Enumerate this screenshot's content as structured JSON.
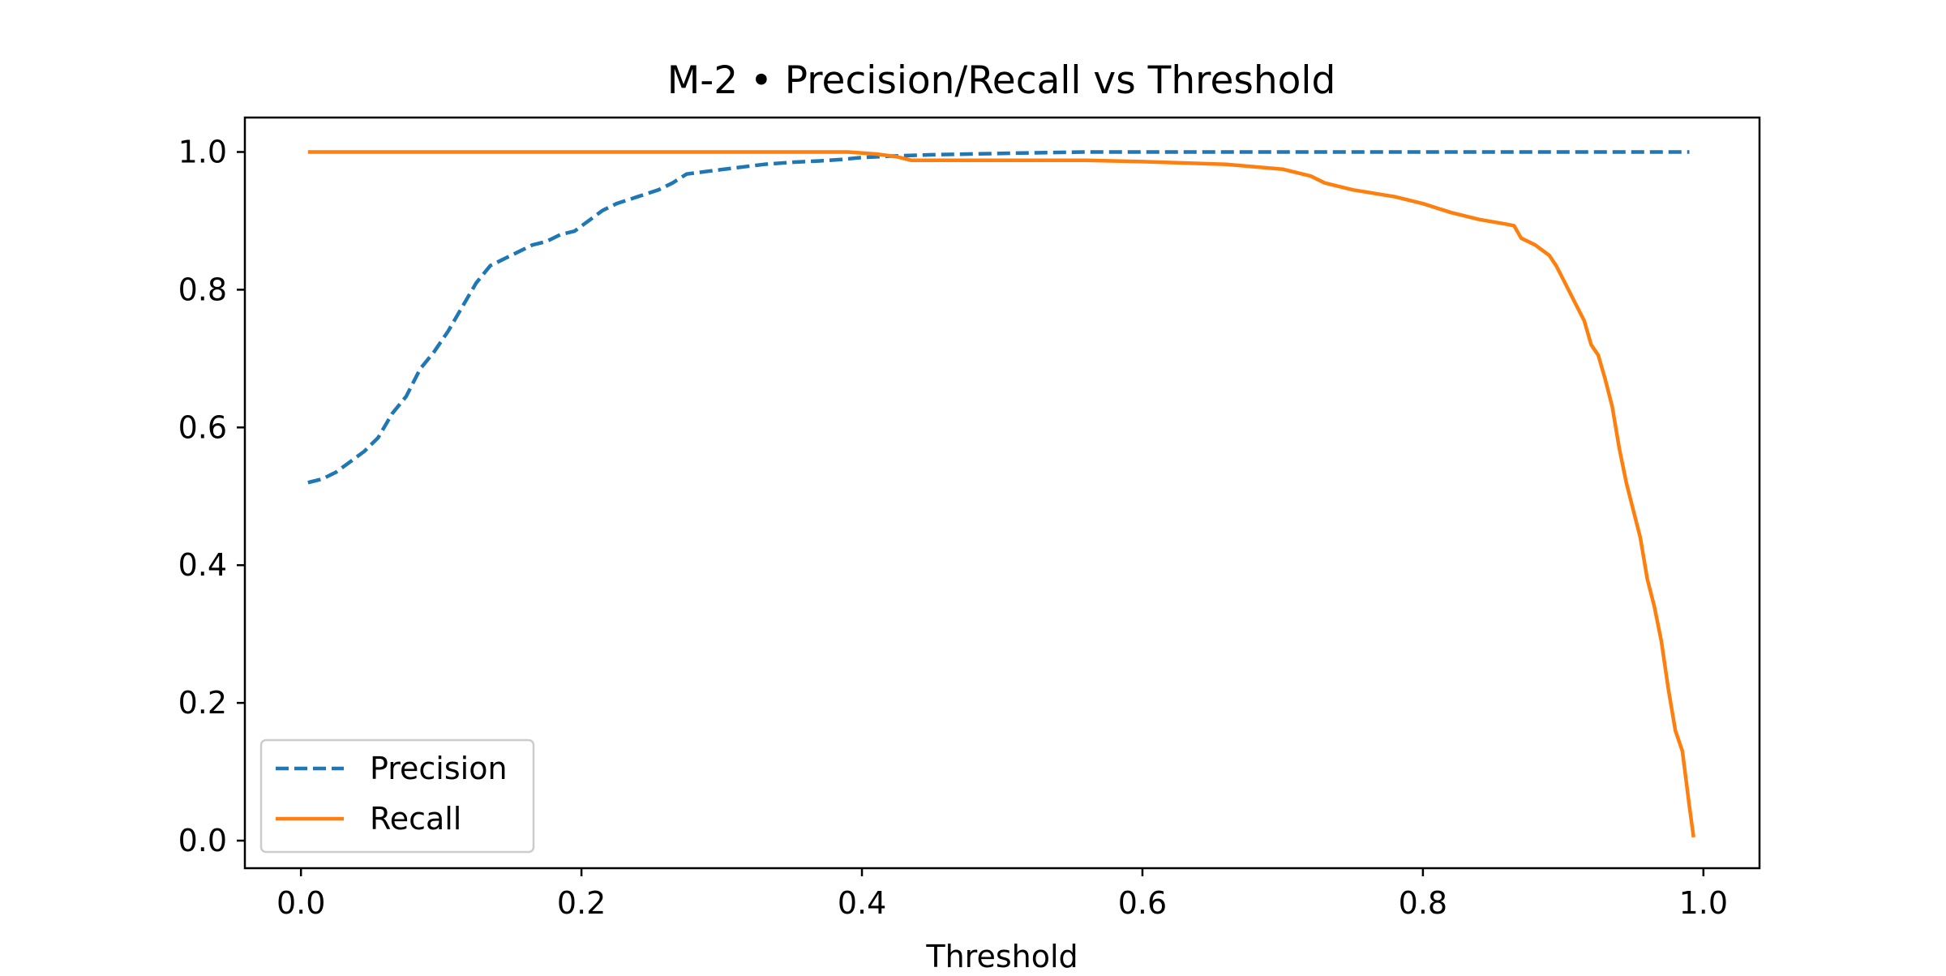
{
  "chart_data": {
    "type": "line",
    "title": "M-2 • Precision/Recall vs Threshold",
    "xlabel": "Threshold",
    "ylabel": "",
    "xlim": [
      -0.04,
      1.04
    ],
    "ylim": [
      -0.04,
      1.05
    ],
    "xticks": [
      0.0,
      0.2,
      0.4,
      0.6,
      0.8,
      1.0
    ],
    "xtick_labels": [
      "0.0",
      "0.2",
      "0.4",
      "0.6",
      "0.8",
      "1.0"
    ],
    "yticks": [
      0.0,
      0.2,
      0.4,
      0.6,
      0.8,
      1.0
    ],
    "ytick_labels": [
      "0.0",
      "0.2",
      "0.4",
      "0.6",
      "0.8",
      "1.0"
    ],
    "grid": false,
    "legend_position": "lower-left",
    "series": [
      {
        "name": "Precision",
        "color": "#1f77b4",
        "style": "dashed",
        "x": [
          0.005,
          0.015,
          0.025,
          0.035,
          0.045,
          0.055,
          0.065,
          0.075,
          0.085,
          0.095,
          0.105,
          0.115,
          0.125,
          0.135,
          0.145,
          0.155,
          0.165,
          0.175,
          0.185,
          0.195,
          0.205,
          0.215,
          0.225,
          0.24,
          0.255,
          0.265,
          0.275,
          0.29,
          0.31,
          0.33,
          0.35,
          0.37,
          0.385,
          0.4,
          0.42,
          0.45,
          0.5,
          0.56,
          0.6,
          0.7,
          0.8,
          0.9,
          0.99
        ],
        "y": [
          0.52,
          0.525,
          0.535,
          0.55,
          0.565,
          0.585,
          0.62,
          0.645,
          0.685,
          0.71,
          0.74,
          0.775,
          0.81,
          0.835,
          0.845,
          0.855,
          0.865,
          0.87,
          0.88,
          0.885,
          0.9,
          0.915,
          0.925,
          0.935,
          0.945,
          0.955,
          0.968,
          0.972,
          0.977,
          0.982,
          0.985,
          0.987,
          0.989,
          0.992,
          0.994,
          0.996,
          0.998,
          1.0,
          1.0,
          1.0,
          1.0,
          1.0,
          1.0
        ]
      },
      {
        "name": "Recall",
        "color": "#ff7f0e",
        "style": "solid",
        "x": [
          0.005,
          0.1,
          0.2,
          0.3,
          0.39,
          0.41,
          0.425,
          0.435,
          0.5,
          0.56,
          0.6,
          0.66,
          0.7,
          0.72,
          0.73,
          0.75,
          0.78,
          0.8,
          0.82,
          0.84,
          0.86,
          0.865,
          0.87,
          0.88,
          0.89,
          0.895,
          0.9,
          0.905,
          0.91,
          0.915,
          0.92,
          0.925,
          0.93,
          0.935,
          0.94,
          0.945,
          0.95,
          0.955,
          0.96,
          0.965,
          0.97,
          0.975,
          0.98,
          0.985,
          0.99,
          0.993
        ],
        "y": [
          1.0,
          1.0,
          1.0,
          1.0,
          1.0,
          0.997,
          0.993,
          0.988,
          0.988,
          0.988,
          0.986,
          0.982,
          0.975,
          0.965,
          0.955,
          0.945,
          0.935,
          0.925,
          0.912,
          0.902,
          0.895,
          0.893,
          0.875,
          0.865,
          0.85,
          0.835,
          0.815,
          0.795,
          0.775,
          0.755,
          0.72,
          0.705,
          0.67,
          0.63,
          0.57,
          0.52,
          0.48,
          0.44,
          0.38,
          0.34,
          0.29,
          0.22,
          0.16,
          0.13,
          0.05,
          0.005
        ]
      }
    ]
  }
}
